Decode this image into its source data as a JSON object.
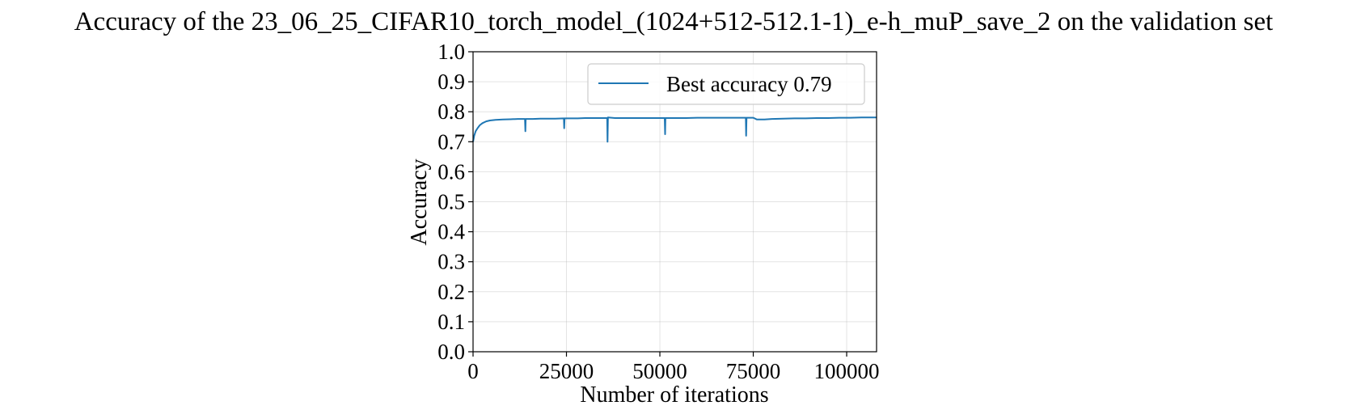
{
  "chart_data": {
    "type": "line",
    "title": "Accuracy of the 23_06_25_CIFAR10_torch_model_(1024+512-512.1-1)_e-h_muP_save_2 on the validation set",
    "xlabel": "Number of iterations",
    "ylabel": "Accuracy",
    "xlim": [
      0,
      108000
    ],
    "ylim": [
      0.0,
      1.0
    ],
    "xticks": [
      0,
      25000,
      50000,
      75000,
      100000
    ],
    "xtick_labels": [
      "0",
      "25000",
      "50000",
      "75000",
      "100000"
    ],
    "yticks": [
      0.0,
      0.1,
      0.2,
      0.3,
      0.4,
      0.5,
      0.6,
      0.7,
      0.8,
      0.9,
      1.0
    ],
    "ytick_labels": [
      "0.0",
      "0.1",
      "0.2",
      "0.3",
      "0.4",
      "0.5",
      "0.6",
      "0.7",
      "0.8",
      "0.9",
      "1.0"
    ],
    "grid": true,
    "legend_position": "top-right",
    "series": [
      {
        "name": "Best accuracy 0.79",
        "color": "#1f77b4",
        "x": [
          0,
          300,
          700,
          1200,
          1800,
          2500,
          3500,
          4500,
          6000,
          8000,
          10000,
          12000,
          13900,
          14000,
          14100,
          16000,
          18000,
          20000,
          22000,
          24300,
          24400,
          24500,
          26000,
          28000,
          30000,
          32000,
          34000,
          35900,
          36000,
          36100,
          38000,
          40000,
          43000,
          46000,
          49000,
          51300,
          51400,
          51500,
          54000,
          57000,
          60000,
          63000,
          66000,
          69000,
          72000,
          73000,
          73100,
          73200,
          74000,
          75000,
          76000,
          78000,
          80000,
          83000,
          86000,
          89000,
          92000,
          95000,
          98000,
          101000,
          104000,
          108000
        ],
        "y": [
          0.7,
          0.72,
          0.735,
          0.745,
          0.755,
          0.762,
          0.768,
          0.771,
          0.773,
          0.774,
          0.775,
          0.776,
          0.776,
          0.735,
          0.776,
          0.776,
          0.777,
          0.777,
          0.777,
          0.778,
          0.745,
          0.778,
          0.778,
          0.778,
          0.779,
          0.779,
          0.779,
          0.779,
          0.7,
          0.781,
          0.779,
          0.779,
          0.779,
          0.779,
          0.779,
          0.779,
          0.725,
          0.779,
          0.779,
          0.779,
          0.78,
          0.78,
          0.78,
          0.78,
          0.78,
          0.78,
          0.72,
          0.78,
          0.78,
          0.78,
          0.774,
          0.774,
          0.776,
          0.777,
          0.778,
          0.778,
          0.779,
          0.779,
          0.78,
          0.78,
          0.781,
          0.781
        ]
      }
    ]
  }
}
